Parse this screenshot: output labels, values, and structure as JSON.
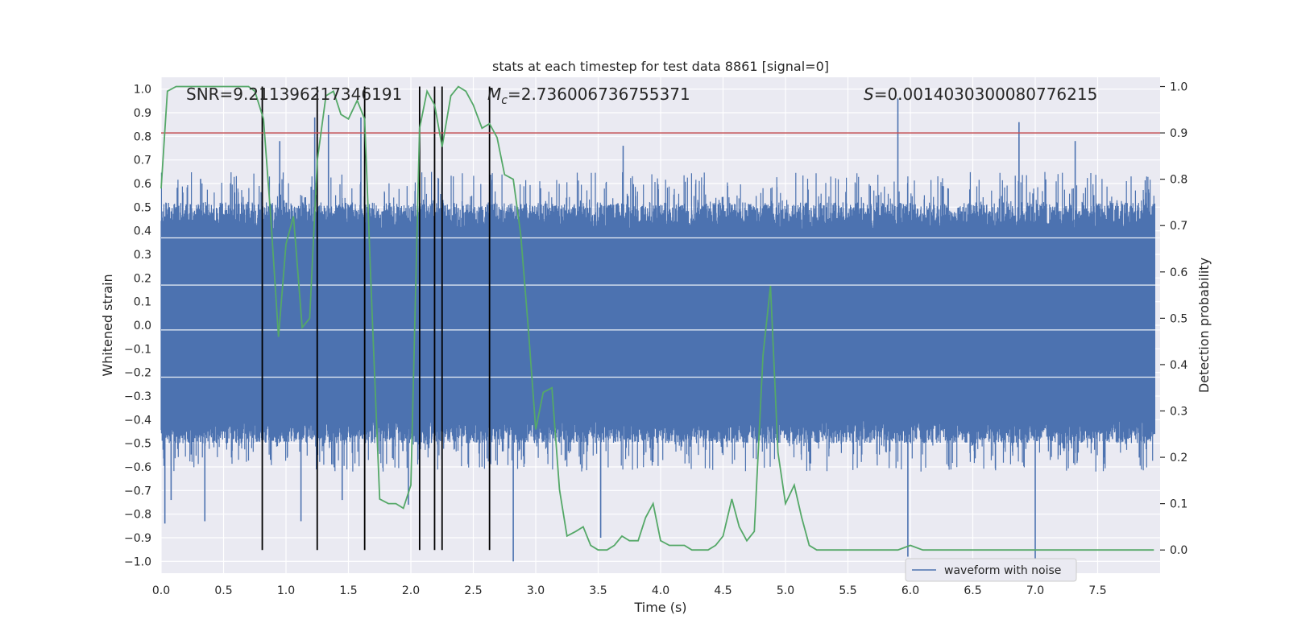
{
  "chart_data": {
    "type": "line",
    "title": "stats at each timestep for test data 8861 [signal=0]",
    "xlabel": "Time (s)",
    "ylabel_left": "Whitened strain",
    "ylabel_right": "Detection probability",
    "xlim": [
      0,
      8
    ],
    "ylim_left": [
      -1.05,
      1.05
    ],
    "ylim_right": [
      -0.05,
      1.02
    ],
    "x_ticks": [
      0.0,
      0.5,
      1.0,
      1.5,
      2.0,
      2.5,
      3.0,
      3.5,
      4.0,
      4.5,
      5.0,
      5.5,
      6.0,
      6.5,
      7.0,
      7.5
    ],
    "x_tick_labels": [
      "0.0",
      "0.5",
      "1.0",
      "1.5",
      "2.0",
      "2.5",
      "3.0",
      "3.5",
      "4.0",
      "4.5",
      "5.0",
      "5.5",
      "6.0",
      "6.5",
      "7.0",
      "7.5"
    ],
    "y_ticks_left": [
      -1.0,
      -0.9,
      -0.8,
      -0.7,
      -0.6,
      -0.5,
      -0.4,
      -0.3,
      -0.2,
      -0.1,
      0.0,
      0.1,
      0.2,
      0.3,
      0.4,
      0.5,
      0.6,
      0.7,
      0.8,
      0.9,
      1.0
    ],
    "y_tick_labels_left": [
      "−1.0",
      "−0.9",
      "−0.8",
      "−0.7",
      "−0.6",
      "−0.5",
      "−0.4",
      "−0.3",
      "−0.2",
      "−0.1",
      "0.0",
      "0.1",
      "0.2",
      "0.3",
      "0.4",
      "0.5",
      "0.6",
      "0.7",
      "0.8",
      "0.9",
      "1.0"
    ],
    "y_ticks_right": [
      0.0,
      0.1,
      0.2,
      0.3,
      0.4,
      0.5,
      0.6,
      0.7,
      0.8,
      0.9,
      1.0
    ],
    "y_tick_labels_right": [
      "0.0",
      "0.1",
      "0.2",
      "0.3",
      "0.4",
      "0.5",
      "0.6",
      "0.7",
      "0.8",
      "0.9",
      "1.0"
    ],
    "annotations": {
      "snr": "SNR=9.211396217346191",
      "mc_symbol": "M",
      "mc_sub": "c",
      "mc_value": "=2.736006736755371",
      "s_symbol": "S",
      "s_value": "=0.001403030008077621​5"
    },
    "threshold": {
      "axis": "right",
      "y": 0.9,
      "color": "#c44e52"
    },
    "vertical_markers_x": [
      0.81,
      1.25,
      1.63,
      2.07,
      2.19,
      2.25,
      2.63
    ],
    "waveform": {
      "name": "waveform with noise",
      "color": "#4c72b0",
      "core_amplitude": 0.4,
      "spikes": [
        {
          "x": 0.03,
          "y": -0.84
        },
        {
          "x": 0.08,
          "y": -0.74
        },
        {
          "x": 0.35,
          "y": -0.83
        },
        {
          "x": 0.81,
          "y": 0.78
        },
        {
          "x": 0.95,
          "y": 0.78
        },
        {
          "x": 1.12,
          "y": -0.83
        },
        {
          "x": 1.23,
          "y": 0.88
        },
        {
          "x": 1.34,
          "y": 0.89
        },
        {
          "x": 1.45,
          "y": -0.74
        },
        {
          "x": 1.6,
          "y": 0.88
        },
        {
          "x": 1.98,
          "y": -0.76
        },
        {
          "x": 2.25,
          "y": 0.84
        },
        {
          "x": 2.82,
          "y": -1.0
        },
        {
          "x": 3.52,
          "y": -0.9
        },
        {
          "x": 3.7,
          "y": 0.76
        },
        {
          "x": 5.9,
          "y": 0.96
        },
        {
          "x": 5.98,
          "y": -0.98
        },
        {
          "x": 6.87,
          "y": 0.86
        },
        {
          "x": 7.0,
          "y": -1.0
        },
        {
          "x": 7.32,
          "y": 0.78
        }
      ]
    },
    "detection_probability": {
      "color": "#55a868",
      "x": [
        0.0,
        0.05,
        0.12,
        0.3,
        0.5,
        0.6,
        0.7,
        0.75,
        0.82,
        0.88,
        0.94,
        1.0,
        1.06,
        1.13,
        1.19,
        1.25,
        1.32,
        1.38,
        1.44,
        1.5,
        1.57,
        1.63,
        1.69,
        1.75,
        1.82,
        1.88,
        1.94,
        2.0,
        2.07,
        2.13,
        2.19,
        2.25,
        2.32,
        2.38,
        2.44,
        2.5,
        2.57,
        2.63,
        2.69,
        2.75,
        2.82,
        2.88,
        2.94,
        3.0,
        3.06,
        3.13,
        3.19,
        3.25,
        3.32,
        3.38,
        3.44,
        3.5,
        3.57,
        3.63,
        3.69,
        3.75,
        3.82,
        3.88,
        3.94,
        4.0,
        4.07,
        4.13,
        4.19,
        4.25,
        4.32,
        4.38,
        4.44,
        4.5,
        4.57,
        4.63,
        4.69,
        4.75,
        4.82,
        4.88,
        4.94,
        5.0,
        5.07,
        5.13,
        5.19,
        5.25,
        5.5,
        5.75,
        5.9,
        6.0,
        6.1,
        6.3,
        6.5,
        7.0,
        7.5,
        7.95
      ],
      "y": [
        0.78,
        0.99,
        1.0,
        1.0,
        1.0,
        1.0,
        1.0,
        0.99,
        0.93,
        0.71,
        0.46,
        0.66,
        0.72,
        0.48,
        0.5,
        0.84,
        0.98,
        0.99,
        0.94,
        0.93,
        0.97,
        0.93,
        0.51,
        0.11,
        0.1,
        0.1,
        0.09,
        0.14,
        0.91,
        0.99,
        0.96,
        0.87,
        0.98,
        1.0,
        0.99,
        0.96,
        0.91,
        0.92,
        0.89,
        0.81,
        0.8,
        0.68,
        0.48,
        0.26,
        0.34,
        0.35,
        0.13,
        0.03,
        0.04,
        0.05,
        0.01,
        0.0,
        0.0,
        0.01,
        0.03,
        0.02,
        0.02,
        0.07,
        0.1,
        0.02,
        0.01,
        0.01,
        0.01,
        0.0,
        0.0,
        0.0,
        0.01,
        0.03,
        0.11,
        0.05,
        0.02,
        0.04,
        0.42,
        0.57,
        0.21,
        0.1,
        0.14,
        0.07,
        0.01,
        0.0,
        0.0,
        0.0,
        0.0,
        0.01,
        0.0,
        0.0,
        0.0,
        0.0,
        0.0,
        0.0
      ]
    },
    "legend": {
      "placement": "lower-right",
      "entries": [
        "waveform with noise"
      ]
    },
    "grid": true
  }
}
